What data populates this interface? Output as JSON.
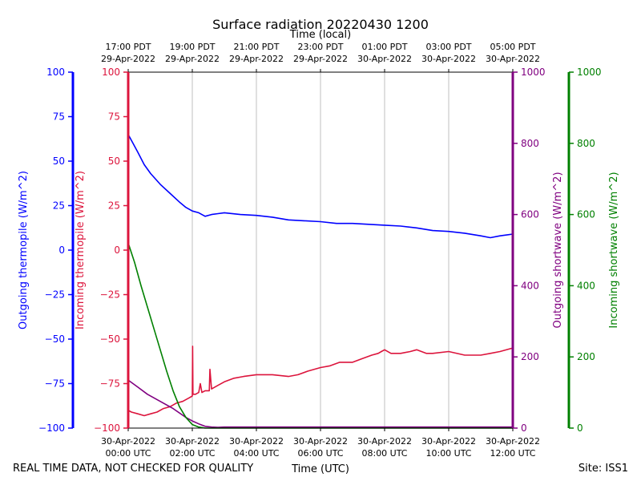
{
  "chart_data": {
    "type": "line",
    "title": "Surface radiation 20220430 1200",
    "top_axis": {
      "label": "Time (local)",
      "ticks": [
        {
          "l1": "17:00 PDT",
          "l2": "29-Apr-2022"
        },
        {
          "l1": "19:00 PDT",
          "l2": "29-Apr-2022"
        },
        {
          "l1": "21:00 PDT",
          "l2": "29-Apr-2022"
        },
        {
          "l1": "23:00 PDT",
          "l2": "29-Apr-2022"
        },
        {
          "l1": "01:00 PDT",
          "l2": "30-Apr-2022"
        },
        {
          "l1": "03:00 PDT",
          "l2": "30-Apr-2022"
        },
        {
          "l1": "05:00 PDT",
          "l2": "30-Apr-2022"
        }
      ]
    },
    "bottom_axis": {
      "label": "Time (UTC)",
      "xlim": [
        0,
        12
      ],
      "ticks": [
        {
          "l1": "30-Apr-2022",
          "l2": "00:00 UTC",
          "v": 0
        },
        {
          "l1": "30-Apr-2022",
          "l2": "02:00 UTC",
          "v": 2
        },
        {
          "l1": "30-Apr-2022",
          "l2": "04:00 UTC",
          "v": 4
        },
        {
          "l1": "30-Apr-2022",
          "l2": "06:00 UTC",
          "v": 6
        },
        {
          "l1": "30-Apr-2022",
          "l2": "08:00 UTC",
          "v": 8
        },
        {
          "l1": "30-Apr-2022",
          "l2": "10:00 UTC",
          "v": 10
        },
        {
          "l1": "30-Apr-2022",
          "l2": "12:00 UTC",
          "v": 12
        }
      ]
    },
    "y_axes": [
      {
        "label": "Outgoing thermopile (W/m^2)",
        "color": "#0000ff",
        "ylim": [
          -100,
          100
        ],
        "ticks": [
          "100",
          "75",
          "50",
          "25",
          "0",
          "−25",
          "−50",
          "−75",
          "−100"
        ]
      },
      {
        "label": "Incoming thermopile (W/m^2)",
        "color": "#dc143c",
        "ylim": [
          -100,
          100
        ],
        "ticks": [
          "100",
          "75",
          "50",
          "25",
          "0",
          "−25",
          "−50",
          "−75",
          "−100"
        ]
      },
      {
        "label": "Outgoing shortwave (W/m^2)",
        "color": "#800080",
        "ylim": [
          0,
          1000
        ],
        "ticks": [
          "1000",
          "800",
          "600",
          "400",
          "200",
          "0"
        ]
      },
      {
        "label": "Incoming shortwave (W/m^2)",
        "color": "#008000",
        "ylim": [
          0,
          1000
        ],
        "ticks": [
          "1000",
          "800",
          "600",
          "400",
          "200",
          "0"
        ]
      }
    ],
    "grid": "vertical",
    "series": [
      {
        "name": "Outgoing thermopile",
        "color": "#0000ff",
        "axis": 0,
        "x": [
          0,
          0.15,
          0.3,
          0.5,
          0.7,
          1.0,
          1.3,
          1.6,
          1.8,
          2.0,
          2.2,
          2.4,
          2.6,
          2.8,
          3.0,
          3.5,
          4.0,
          4.5,
          5.0,
          5.5,
          6.0,
          6.5,
          7.0,
          7.5,
          8.0,
          8.5,
          9.0,
          9.5,
          10.0,
          10.5,
          11.0,
          11.3,
          11.6,
          12.0
        ],
        "y": [
          65,
          60,
          55,
          48,
          43,
          37,
          32,
          27,
          24,
          22,
          21,
          19,
          20,
          20.5,
          21,
          20,
          19.5,
          18.5,
          17,
          16.5,
          16,
          15,
          15,
          14.5,
          14,
          13.5,
          12.5,
          11,
          10.5,
          9.5,
          8,
          7,
          8,
          9
        ]
      },
      {
        "name": "Incoming thermopile",
        "color": "#dc143c",
        "axis": 1,
        "x": [
          0,
          0.1,
          0.3,
          0.5,
          0.7,
          0.9,
          1.1,
          1.3,
          1.5,
          1.7,
          1.9,
          2.0,
          2.01,
          2.02,
          2.1,
          2.2,
          2.25,
          2.3,
          2.4,
          2.53,
          2.55,
          2.6,
          2.8,
          3.0,
          3.3,
          3.6,
          4.0,
          4.5,
          5.0,
          5.3,
          5.6,
          6.0,
          6.3,
          6.6,
          7.0,
          7.3,
          7.6,
          7.8,
          7.9,
          8.0,
          8.2,
          8.5,
          8.8,
          9.0,
          9.3,
          9.5,
          10.0,
          10.5,
          11.0,
          11.3,
          11.6,
          12.0
        ],
        "y": [
          -90,
          -91,
          -92,
          -93,
          -92,
          -91,
          -89,
          -88,
          -86,
          -85,
          -83,
          -82,
          -54,
          -81,
          -81,
          -80,
          -75,
          -80,
          -79,
          -79,
          -67,
          -78,
          -76,
          -74,
          -72,
          -71,
          -70,
          -70,
          -71,
          -70,
          -68,
          -66,
          -65,
          -63,
          -63,
          -61,
          -59,
          -58,
          -57,
          -56,
          -58,
          -58,
          -57,
          -56,
          -58,
          -58,
          -57,
          -59,
          -59,
          -58,
          -57,
          -55
        ]
      },
      {
        "name": "Outgoing shortwave",
        "color": "#800080",
        "axis": 2,
        "x": [
          0,
          0.3,
          0.6,
          1.0,
          1.4,
          1.8,
          2.0,
          2.2,
          2.4,
          2.6,
          2.8,
          3.0,
          4.0,
          6.0,
          8.0,
          10.0,
          12.0
        ],
        "y": [
          135,
          115,
          95,
          75,
          55,
          30,
          20,
          12,
          5,
          3,
          2,
          3,
          3,
          3,
          3,
          3,
          3
        ]
      },
      {
        "name": "Incoming shortwave",
        "color": "#008000",
        "axis": 3,
        "x": [
          0,
          0.2,
          0.4,
          0.6,
          0.8,
          1.0,
          1.2,
          1.4,
          1.6,
          1.8,
          2.0,
          2.2,
          2.4,
          2.6,
          2.8,
          3.0,
          4.0,
          6.0,
          8.0,
          10.0,
          12.0
        ],
        "y": [
          520,
          465,
          400,
          340,
          280,
          220,
          160,
          105,
          60,
          30,
          10,
          3,
          0,
          0,
          0,
          0,
          0,
          0,
          0,
          0,
          0
        ]
      }
    ]
  },
  "footer": {
    "left_note": "REAL TIME DATA, NOT CHECKED FOR QUALITY",
    "site": "Site: ISS1"
  }
}
